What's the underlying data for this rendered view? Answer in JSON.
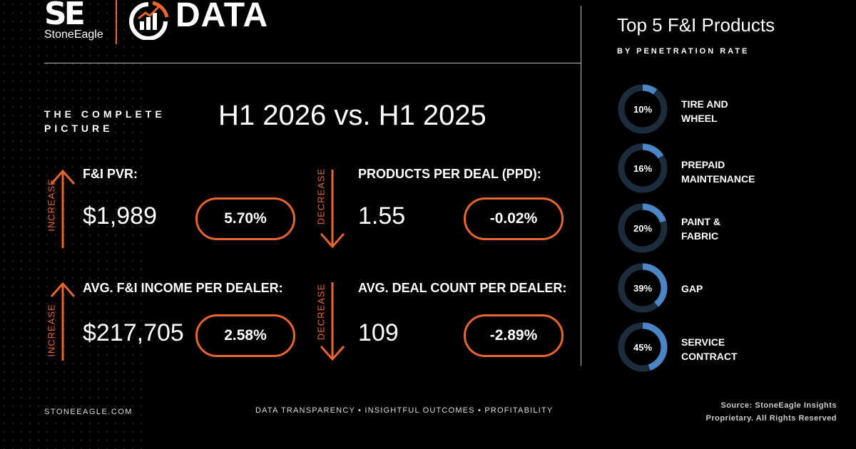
{
  "brand": {
    "logo_mark": "SE",
    "logo_name": "StoneEagle",
    "section_word": "DATA"
  },
  "heading": {
    "tagline_line1": "THE COMPLETE",
    "tagline_line2": "PICTURE",
    "period": "H1 2026 vs. H1 2025"
  },
  "metrics": [
    {
      "direction": "INCREASE",
      "label": "F&I PVR:",
      "value": "$1,989",
      "change": "5.70%"
    },
    {
      "direction": "DECREASE",
      "label": "PRODUCTS PER DEAL (PPD):",
      "value": "1.55",
      "change": "-0.02%"
    },
    {
      "direction": "INCREASE",
      "label": "AVG. F&I INCOME PER DEALER:",
      "value": "$217,705",
      "change": "2.58%"
    },
    {
      "direction": "DECREASE",
      "label": "AVG. DEAL COUNT PER DEALER:",
      "value": "109",
      "change": "-2.89%"
    }
  ],
  "sidebar": {
    "title": "Top 5 F&I Products",
    "subtitle": "BY PENETRATION RATE",
    "products": [
      {
        "pct": 10,
        "pct_label": "10%",
        "line1": "TIRE AND",
        "line2": "WHEEL"
      },
      {
        "pct": 16,
        "pct_label": "16%",
        "line1": "PREPAID",
        "line2": "MAINTENANCE"
      },
      {
        "pct": 20,
        "pct_label": "20%",
        "line1": "PAINT &",
        "line2": "FABRIC"
      },
      {
        "pct": 39,
        "pct_label": "39%",
        "line1": "GAP",
        "line2": ""
      },
      {
        "pct": 45,
        "pct_label": "45%",
        "line1": "SERVICE",
        "line2": "CONTRACT"
      }
    ]
  },
  "colors": {
    "accent": "#e8652d",
    "ring_track": "#1b2c3d",
    "ring_fill": "#4a86c5"
  },
  "footer": {
    "site": "STONEEAGLE.COM",
    "slogan": "DATA TRANSPARENCY • INSIGHTFUL OUTCOMES • PROFITABILITY",
    "source_line1": "Source: StoneEagle Insights",
    "source_line2": "Proprietary. All Rights Reserved"
  }
}
